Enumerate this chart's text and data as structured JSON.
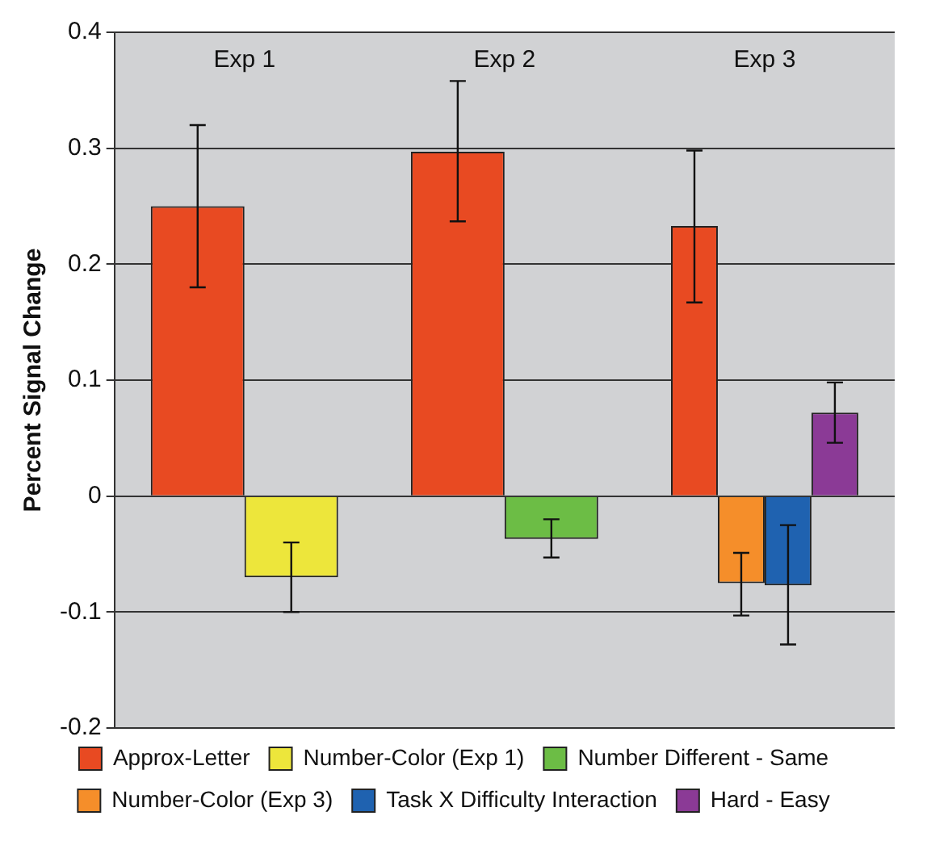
{
  "chart_data": {
    "type": "bar",
    "ylabel": "Percent Signal Change",
    "categories": [
      "Exp 1",
      "Exp 2",
      "Exp 3"
    ],
    "ylim": [
      -0.2,
      0.4
    ],
    "yticks": [
      -0.2,
      -0.1,
      0,
      0.1,
      0.2,
      0.3,
      0.4
    ],
    "grid": "y",
    "legend": "bottom",
    "series": [
      {
        "name": "Approx-Letter",
        "color": "#e84a22",
        "values": [
          0.25,
          0.297,
          0.233
        ],
        "errors": [
          [
            0.18,
            0.32
          ],
          [
            0.237,
            0.358
          ],
          [
            0.167,
            0.298
          ]
        ]
      },
      {
        "name": "Number-Color (Exp 1)",
        "color": "#ede63b",
        "values": [
          -0.07,
          null,
          null
        ],
        "errors": [
          [
            -0.1,
            -0.04
          ],
          null,
          null
        ]
      },
      {
        "name": "Number Different - Same",
        "color": "#6cbd45",
        "values": [
          null,
          -0.037,
          null
        ],
        "errors": [
          null,
          [
            -0.053,
            -0.02
          ],
          null
        ]
      },
      {
        "name": "Number-Color (Exp 3)",
        "color": "#f58e2a",
        "values": [
          null,
          null,
          -0.075
        ],
        "errors": [
          null,
          null,
          [
            -0.103,
            -0.049
          ]
        ]
      },
      {
        "name": "Task X Difficulty Interaction",
        "color": "#1f62b0",
        "values": [
          null,
          null,
          -0.077
        ],
        "errors": [
          null,
          null,
          [
            -0.128,
            -0.025
          ]
        ]
      },
      {
        "name": "Hard - Easy",
        "color": "#8b3a96",
        "values": [
          null,
          null,
          0.072
        ],
        "errors": [
          null,
          null,
          [
            0.046,
            0.098
          ]
        ]
      }
    ]
  }
}
